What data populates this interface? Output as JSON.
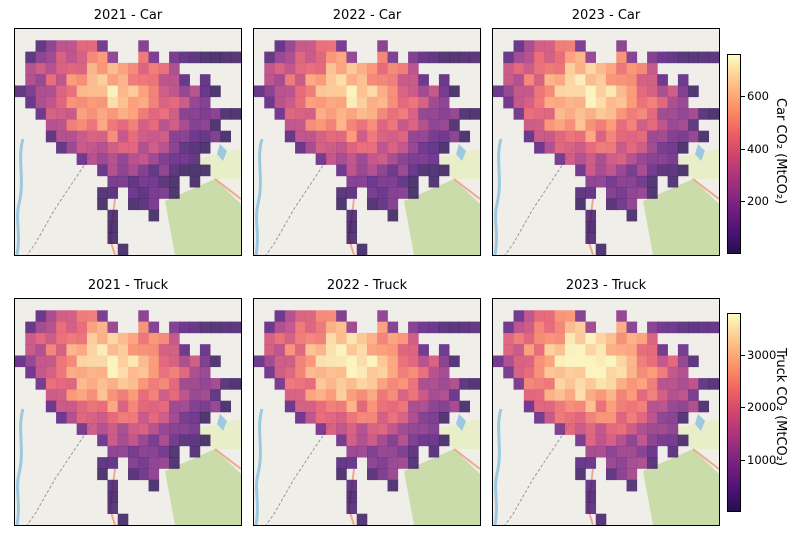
{
  "panels": [
    {
      "title": "2021 - Car"
    },
    {
      "title": "2022 - Car"
    },
    {
      "title": "2023 - Car"
    },
    {
      "title": "2021 - Truck"
    },
    {
      "title": "2022 - Truck"
    },
    {
      "title": "2023 - Truck"
    }
  ],
  "colorbars": [
    {
      "label": "Car CO₂ (MtCO₂)",
      "ticks": [
        "200",
        "400",
        "600"
      ],
      "tick_values": [
        200,
        400,
        600
      ],
      "range": [
        0,
        760
      ]
    },
    {
      "label": "Truck CO₂ (MtCO₂)",
      "ticks": [
        "1000",
        "2000",
        "3000"
      ],
      "tick_values": [
        1000,
        2000,
        3000
      ],
      "range": [
        0,
        3800
      ]
    }
  ],
  "chart_data": {
    "type": "heatmap",
    "colormap": "magma",
    "basemap": "street map tiles",
    "grid_mask": [
      "......................",
      "..#######...#.........",
      ".#########..##.#######",
      ".###############......",
      ".################.#...",
      "####################..",
      ".##################...",
      "..####################",
      "...#################..",
      "...##################.",
      "....###############...",
      "......############....",
      "........###########...",
      ".........#######.#....",
      "........##.#####......",
      "........#..###........",
      ".........#...#........",
      ".........#............",
      ".........#............",
      "..........#..........."
    ]
  }
}
